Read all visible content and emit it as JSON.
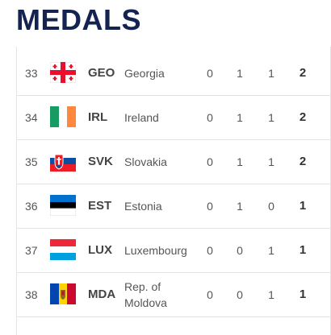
{
  "header": {
    "title": "MEDALS"
  },
  "table": {
    "rows": [
      [
        33,
        "GEO",
        "Georgia",
        0,
        1,
        1,
        2
      ],
      [
        34,
        "IRL",
        "Ireland",
        0,
        1,
        1,
        2
      ],
      [
        35,
        "SVK",
        "Slovakia",
        0,
        1,
        1,
        2
      ],
      [
        36,
        "EST",
        "Estonia",
        0,
        1,
        0,
        1
      ],
      [
        37,
        "LUX",
        "Luxembourg",
        0,
        0,
        1,
        1
      ],
      [
        38,
        "MDA",
        "Rep. of Moldova",
        0,
        0,
        1,
        1
      ]
    ]
  }
}
